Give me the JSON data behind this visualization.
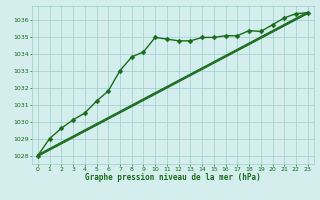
{
  "title": "Graphe pression niveau de la mer (hPa)",
  "bg_color": "#d4eeee",
  "grid_color": "#a0cccc",
  "line_color": "#1a6b1a",
  "marker_color": "#1a6b1a",
  "xlim": [
    -0.5,
    23.5
  ],
  "ylim": [
    1027.5,
    1036.8
  ],
  "xticks": [
    0,
    1,
    2,
    3,
    4,
    5,
    6,
    7,
    8,
    9,
    10,
    11,
    12,
    13,
    14,
    15,
    16,
    17,
    18,
    19,
    20,
    21,
    22,
    23
  ],
  "yticks": [
    1028,
    1029,
    1030,
    1031,
    1032,
    1033,
    1034,
    1035,
    1036
  ],
  "series": [
    {
      "x": [
        0,
        1,
        2,
        3,
        4,
        5,
        6,
        7,
        8,
        9,
        10,
        11,
        12,
        13,
        14,
        15,
        16,
        17,
        18,
        19,
        20,
        21,
        22,
        23
      ],
      "y": [
        1028.0,
        1029.0,
        1029.6,
        1030.1,
        1030.5,
        1031.2,
        1031.8,
        1033.0,
        1033.8,
        1034.1,
        1034.95,
        1034.85,
        1034.75,
        1034.75,
        1034.95,
        1034.95,
        1035.05,
        1035.05,
        1035.35,
        1035.3,
        1035.7,
        1036.1,
        1036.35,
        1036.4
      ],
      "marker": "D",
      "marker_size": 2.5,
      "linewidth": 1.0,
      "has_marker": true
    },
    {
      "x": [
        0,
        23
      ],
      "y": [
        1028.0,
        1036.4
      ],
      "marker": null,
      "marker_size": 0,
      "linewidth": 0.9,
      "has_marker": false
    },
    {
      "x": [
        0,
        23
      ],
      "y": [
        1028.0,
        1036.4
      ],
      "marker": null,
      "marker_size": 0,
      "linewidth": 0.9,
      "has_marker": false
    },
    {
      "x": [
        0,
        23
      ],
      "y": [
        1028.1,
        1036.3
      ],
      "marker": null,
      "marker_size": 0,
      "linewidth": 0.9,
      "has_marker": false
    }
  ],
  "linear_lines": [
    {
      "x": [
        0,
        23
      ],
      "y": [
        1028.05,
        1036.45
      ]
    },
    {
      "x": [
        0,
        23
      ],
      "y": [
        1028.0,
        1036.4
      ]
    },
    {
      "x": [
        0,
        23
      ],
      "y": [
        1027.95,
        1036.35
      ]
    }
  ]
}
